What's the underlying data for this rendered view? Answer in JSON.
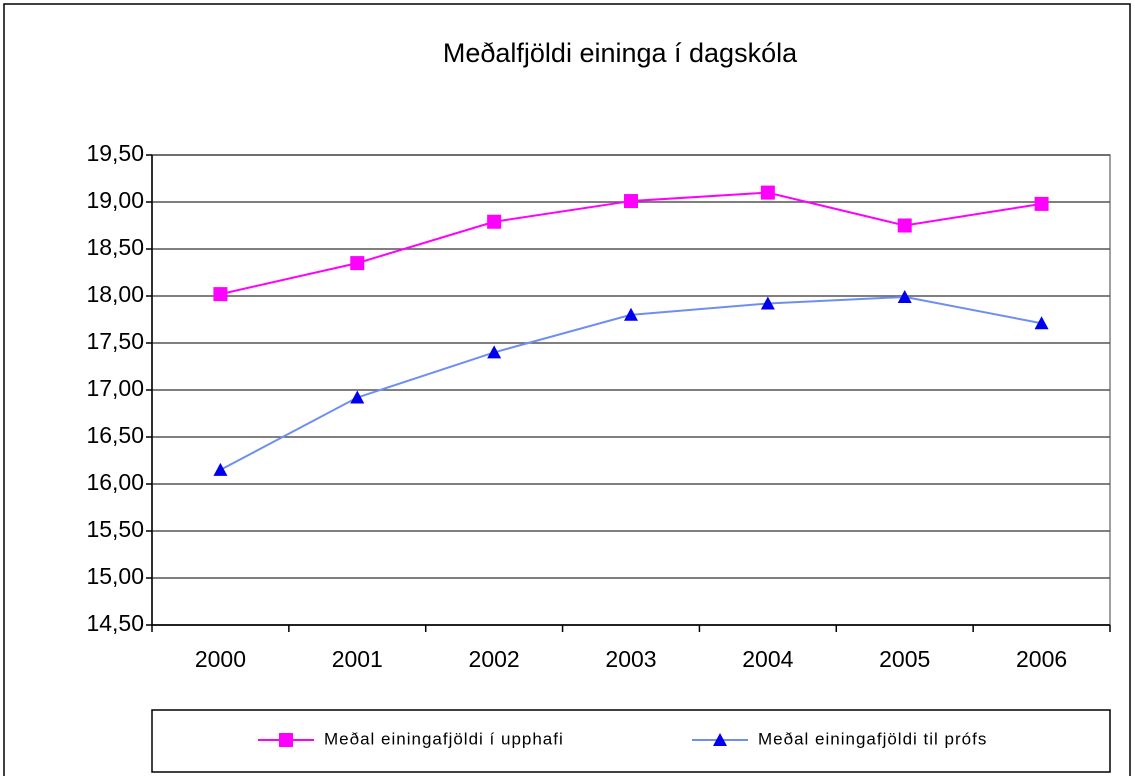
{
  "chart_data": {
    "type": "line",
    "title": "Meðalfjöldi eininga í dagskóla",
    "categories": [
      "2000",
      "2001",
      "2002",
      "2003",
      "2004",
      "2005",
      "2006"
    ],
    "series": [
      {
        "name": "Meðal einingafjöldi  í upphafi",
        "color": "#ff00ff",
        "marker_color": "#ff00ff",
        "marker": "square",
        "values": [
          18.02,
          18.35,
          18.79,
          19.01,
          19.1,
          18.75,
          18.98
        ]
      },
      {
        "name": "Meðal einingafjöldi  til prófs",
        "color": "#6f8ff0",
        "marker_color": "#0000ee",
        "marker": "triangle",
        "values": [
          16.15,
          16.92,
          17.4,
          17.8,
          17.92,
          17.99,
          17.71
        ]
      }
    ],
    "ylim": [
      14.5,
      19.5
    ],
    "yticks": [
      {
        "value": 14.5,
        "label": "14,50"
      },
      {
        "value": 15,
        "label": "15,00"
      },
      {
        "value": 15.5,
        "label": "15,50"
      },
      {
        "value": 16,
        "label": "16,00"
      },
      {
        "value": 16.5,
        "label": "16,50"
      },
      {
        "value": 17,
        "label": "17,00"
      },
      {
        "value": 17.5,
        "label": "17,50"
      },
      {
        "value": 18,
        "label": "18,00"
      },
      {
        "value": 18.5,
        "label": "18,50"
      },
      {
        "value": 19,
        "label": "19,00"
      },
      {
        "value": 19.5,
        "label": "19,50"
      }
    ],
    "grid": true,
    "legend": "bottom"
  }
}
